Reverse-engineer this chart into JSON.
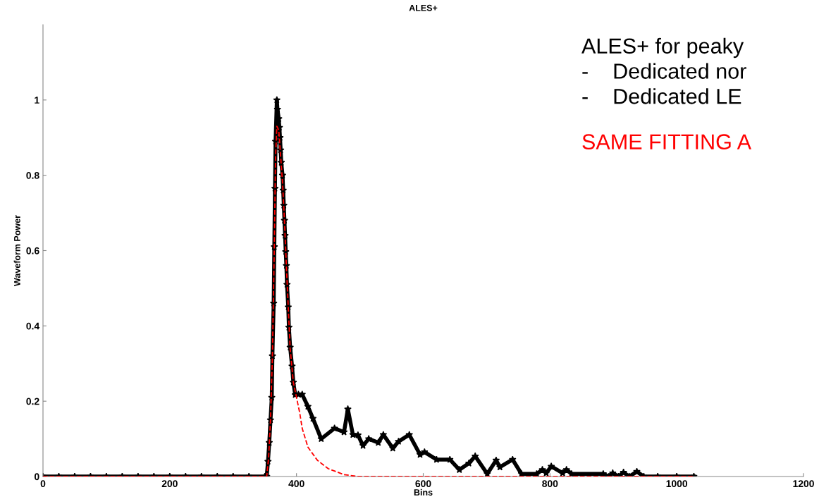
{
  "chart_data": {
    "type": "line",
    "title": "ALES+",
    "xlabel": "Bins",
    "ylabel": "Waveform Power",
    "xlim": [
      0,
      1200
    ],
    "ylim": [
      0,
      1.2
    ],
    "xticks": [
      0,
      200,
      400,
      600,
      800,
      1000,
      1200
    ],
    "yticks": [
      0,
      0.2,
      0.4,
      0.6,
      0.8,
      1
    ],
    "grid": false,
    "legend": false,
    "annotations": [
      "ALES+ for peaky",
      "-    Dedicated nor",
      "-    Dedicated LE",
      "SAME FITTING A"
    ],
    "series": [
      {
        "color": "#000000",
        "marker": "star",
        "line_style": "solid",
        "x": [
          0,
          25,
          50,
          75,
          100,
          125,
          150,
          175,
          200,
          225,
          250,
          275,
          300,
          325,
          350,
          353,
          355,
          357,
          359,
          361,
          362,
          364,
          365,
          366,
          367,
          369,
          370,
          372,
          373,
          374,
          375,
          376,
          378,
          379,
          380,
          381,
          382,
          383,
          384,
          385,
          387,
          388,
          390,
          393,
          395,
          398,
          403,
          409,
          418,
          426,
          439,
          460,
          475,
          481,
          489,
          497,
          505,
          514,
          529,
          537,
          552,
          561,
          578,
          595,
          602,
          621,
          642,
          657,
          672,
          682,
          701,
          715,
          721,
          741,
          755,
          779,
          788,
          794,
          802,
          820,
          826,
          834,
          884,
          893,
          899,
          908,
          916,
          925,
          937,
          948,
          970,
          1000,
          1027
        ],
        "values": [
          0,
          0,
          0,
          0,
          0,
          0,
          0,
          0,
          0,
          0,
          0,
          0,
          0,
          0,
          0,
          0,
          0.04,
          0.09,
          0.15,
          0.21,
          0.32,
          0.46,
          0.61,
          0.765,
          0.89,
          1.0,
          0.975,
          0.95,
          0.927,
          0.9,
          0.867,
          0.834,
          0.8,
          0.76,
          0.72,
          0.68,
          0.64,
          0.597,
          0.56,
          0.51,
          0.45,
          0.396,
          0.343,
          0.293,
          0.25,
          0.217,
          0.218,
          0.218,
          0.186,
          0.154,
          0.1,
          0.128,
          0.118,
          0.179,
          0.111,
          0.11,
          0.082,
          0.1,
          0.09,
          0.111,
          0.075,
          0.093,
          0.111,
          0.058,
          0.065,
          0.045,
          0.045,
          0.018,
          0.035,
          0.054,
          0.007,
          0.043,
          0.025,
          0.045,
          0.007,
          0.007,
          0.018,
          0.009,
          0.027,
          0.009,
          0.018,
          0.007,
          0.007,
          0,
          0.009,
          0,
          0.011,
          0,
          0.013,
          0,
          0,
          0,
          0
        ]
      },
      {
        "color": "#ff0000",
        "marker": "none",
        "line_style": "dashed",
        "x": [
          0,
          353,
          356,
          359,
          362,
          365,
          367,
          369,
          372,
          375,
          378,
          381,
          384,
          387,
          390,
          395,
          400,
          405,
          409,
          418,
          433,
          450,
          475,
          497,
          1027
        ],
        "values": [
          0,
          0,
          0.05,
          0.15,
          0.32,
          0.61,
          0.85,
          0.93,
          0.92,
          0.85,
          0.78,
          0.68,
          0.56,
          0.45,
          0.34,
          0.25,
          0.21,
          0.17,
          0.128,
          0.078,
          0.043,
          0.021,
          0.005,
          0,
          0
        ]
      }
    ]
  }
}
